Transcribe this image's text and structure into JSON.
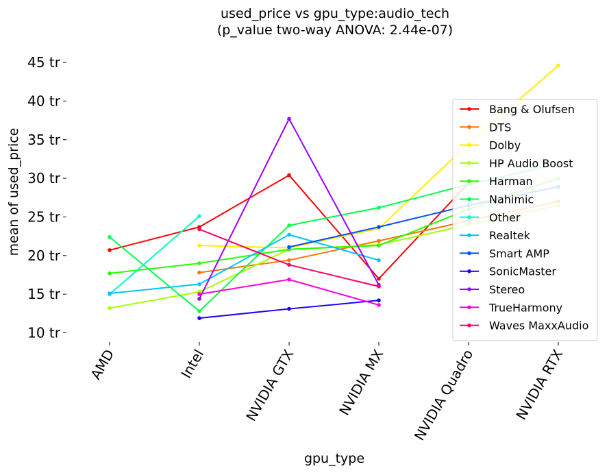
{
  "chart_data": {
    "type": "line",
    "title": "used_price vs gpu_type:audio_tech",
    "subtitle": "(p_value two-way ANOVA: 2.44e-07)",
    "xlabel": "gpu_type",
    "ylabel": "mean of used_price",
    "categories": [
      "AMD",
      "Intel",
      "NVIDIA GTX",
      "NVIDIA MX",
      "NVIDIA Quadro",
      "NVIDIA RTX"
    ],
    "yticks": [
      10,
      15,
      20,
      25,
      30,
      35,
      40,
      45
    ],
    "ytick_labels": [
      "10 tr",
      "15 tr",
      "20 tr",
      "25 tr",
      "30 tr",
      "35 tr",
      "40 tr",
      "45 tr"
    ],
    "ylim": [
      8.6,
      46.2
    ],
    "legend_position": "right",
    "series": [
      {
        "name": "Bang & Olufsen",
        "color": "#ff0000",
        "values": [
          20.7,
          23.7,
          30.4,
          17.0,
          29.4,
          null
        ]
      },
      {
        "name": "DTS",
        "color": "#ff7300",
        "values": [
          null,
          17.8,
          19.4,
          21.9,
          24.5,
          27.0
        ]
      },
      {
        "name": "Dolby",
        "color": "#ffee00",
        "values": [
          null,
          21.3,
          21.0,
          23.5,
          34.5,
          44.6
        ]
      },
      {
        "name": "HP Audio Boost",
        "color": "#a6ff00",
        "values": [
          13.2,
          15.3,
          20.8,
          21.4,
          24.0,
          26.5
        ]
      },
      {
        "name": "Harman",
        "color": "#26ff00",
        "values": [
          17.7,
          19.0,
          20.8,
          21.3,
          26.0,
          30.0
        ]
      },
      {
        "name": "Nahimic",
        "color": "#00ff4a",
        "values": [
          22.4,
          12.8,
          23.9,
          26.2,
          29.2,
          31.9
        ]
      },
      {
        "name": "Other",
        "color": "#00ffc4",
        "values": [
          15.0,
          25.1,
          null,
          null,
          null,
          null
        ]
      },
      {
        "name": "Realtek",
        "color": "#00c4ff",
        "values": [
          15.1,
          16.3,
          22.7,
          19.4,
          null,
          null
        ]
      },
      {
        "name": "Smart AMP",
        "color": "#0050ff",
        "values": [
          null,
          null,
          21.1,
          23.7,
          26.5,
          28.9
        ]
      },
      {
        "name": "SonicMaster",
        "color": "#1a00ff",
        "values": [
          null,
          11.9,
          13.1,
          14.2,
          null,
          null
        ]
      },
      {
        "name": "Stereo",
        "color": "#9a00ff",
        "values": [
          null,
          14.4,
          37.7,
          16.2,
          null,
          null
        ]
      },
      {
        "name": "TrueHarmony",
        "color": "#ff00dc",
        "values": [
          null,
          15.0,
          16.9,
          13.6,
          null,
          null
        ]
      },
      {
        "name": "Waves MaxxAudio",
        "color": "#ff0066",
        "values": [
          null,
          23.4,
          18.8,
          16.0,
          null,
          null
        ]
      }
    ]
  }
}
